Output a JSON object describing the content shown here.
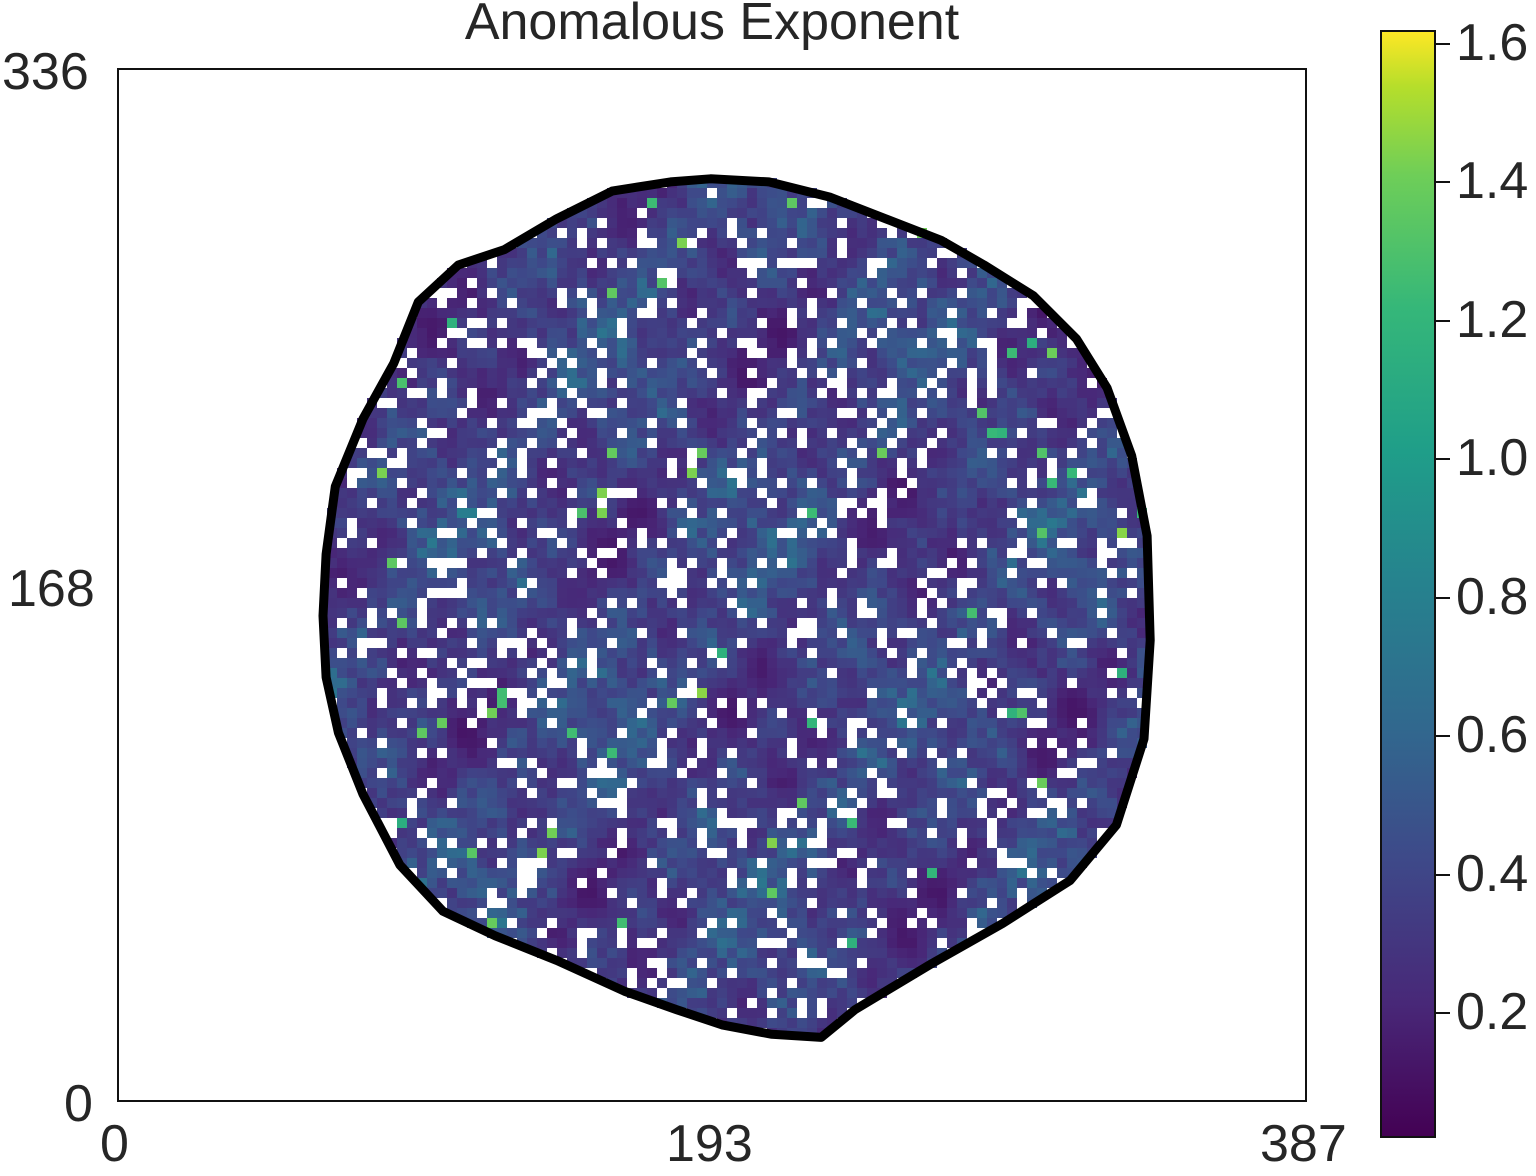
{
  "chart_data": {
    "type": "heatmap",
    "title": "Anomalous Exponent",
    "xlim": [
      0,
      387
    ],
    "ylim": [
      0,
      336
    ],
    "x_ticks": [
      "0",
      "193",
      "387"
    ],
    "y_ticks": [
      "0",
      "168",
      "336"
    ],
    "colormap": "viridis",
    "colorbar": {
      "range": [
        0.02,
        1.62
      ],
      "ticks": [
        "0.2",
        "0.4",
        "0.6",
        "0.8",
        "1.0",
        "1.2",
        "1.4",
        "1.6"
      ],
      "tick_values": [
        0.2,
        0.4,
        0.6,
        0.8,
        1.0,
        1.2,
        1.4,
        1.6
      ]
    },
    "boundary_outline_color": "#000000",
    "masked_value_color": "#ffffff",
    "boundary_outline_points": [
      [
        193,
        300
      ],
      [
        212,
        299
      ],
      [
        232,
        294
      ],
      [
        250,
        287
      ],
      [
        268,
        280
      ],
      [
        282,
        272
      ],
      [
        298,
        262
      ],
      [
        312,
        248
      ],
      [
        322,
        232
      ],
      [
        330,
        210
      ],
      [
        335,
        184
      ],
      [
        336,
        150
      ],
      [
        334,
        118
      ],
      [
        325,
        90
      ],
      [
        310,
        72
      ],
      [
        288,
        58
      ],
      [
        265,
        45
      ],
      [
        240,
        30
      ],
      [
        229,
        21
      ],
      [
        213,
        22
      ],
      [
        197,
        25
      ],
      [
        182,
        30
      ],
      [
        165,
        36
      ],
      [
        143,
        46
      ],
      [
        123,
        54
      ],
      [
        106,
        62
      ],
      [
        92,
        77
      ],
      [
        80,
        100
      ],
      [
        72,
        120
      ],
      [
        68,
        138
      ],
      [
        67,
        158
      ],
      [
        68,
        178
      ],
      [
        71,
        200
      ],
      [
        80,
        222
      ],
      [
        90,
        240
      ],
      [
        98,
        260
      ],
      [
        111,
        272
      ],
      [
        126,
        277
      ],
      [
        143,
        287
      ],
      [
        161,
        296
      ],
      [
        180,
        299
      ]
    ]
  }
}
